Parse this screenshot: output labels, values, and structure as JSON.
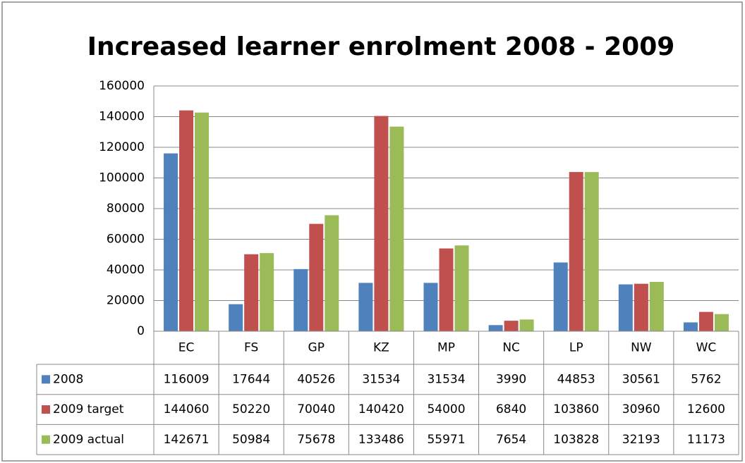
{
  "chart_data": {
    "type": "bar",
    "title": "Increased learner enrolment 2008 - 2009",
    "categories": [
      "EC",
      "FS",
      "GP",
      "KZ",
      "MP",
      "NC",
      "LP",
      "NW",
      "WC"
    ],
    "series": [
      {
        "name": "2008",
        "color": "#4f81bd",
        "values": [
          116009,
          17644,
          40526,
          31534,
          31534,
          3990,
          44853,
          30561,
          5762
        ]
      },
      {
        "name": "2009 target",
        "color": "#c0504d",
        "values": [
          144060,
          50220,
          70040,
          140420,
          54000,
          6840,
          103860,
          30960,
          12600
        ]
      },
      {
        "name": "2009 actual",
        "color": "#9bbb59",
        "values": [
          142671,
          50984,
          75678,
          133486,
          55971,
          7654,
          103828,
          32193,
          11173
        ]
      }
    ],
    "ylim": [
      0,
      160000
    ],
    "yticks": [
      0,
      20000,
      40000,
      60000,
      80000,
      100000,
      120000,
      140000,
      160000
    ],
    "grid": true,
    "data_table": true
  }
}
